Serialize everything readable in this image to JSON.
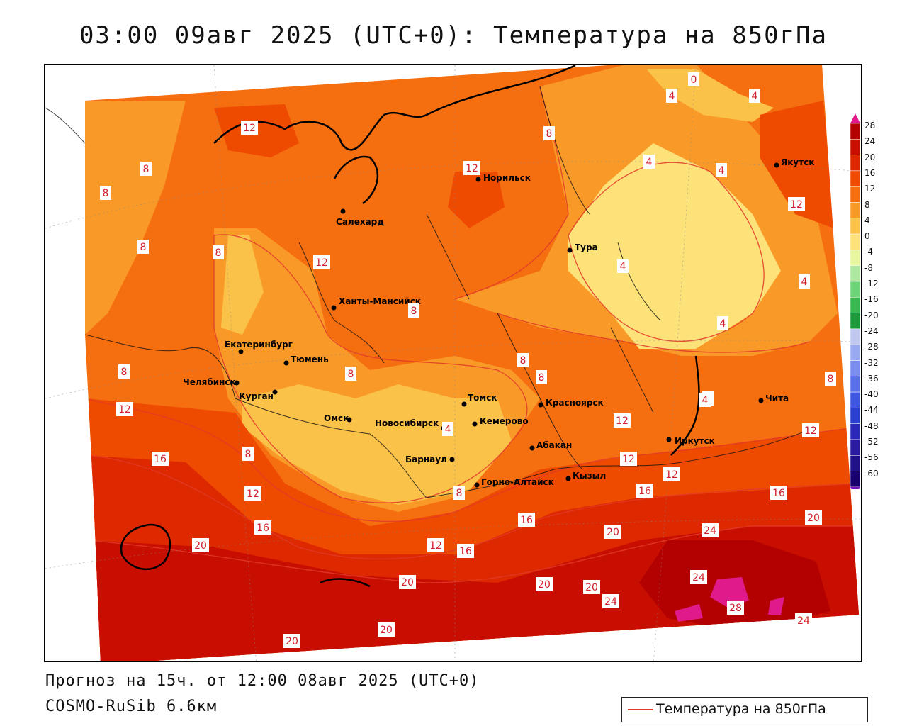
{
  "title": "03:00 09авг 2025 (UTC+0): Температура на 850гПа",
  "footer": {
    "forecast": "Прогноз на 15ч. от 12:00 08авг 2025 (UTC+0)",
    "model": "COSMO-RuSib 6.6км"
  },
  "legend": {
    "label": "Температура на 850гПа",
    "line_color": "#e23a2a"
  },
  "colorbar": {
    "ticks": [
      "28",
      "24",
      "20",
      "16",
      "12",
      "8",
      "4",
      "0",
      "-4",
      "-8",
      "-12",
      "-16",
      "-20",
      "-24",
      "-28",
      "-32",
      "-36",
      "-40",
      "-44",
      "-48",
      "-52",
      "-56",
      "-60"
    ],
    "colors": [
      "#b30000",
      "#c80e00",
      "#dd2800",
      "#ee4a00",
      "#f56e10",
      "#f99a28",
      "#fbc24a",
      "#fde27a",
      "#e8f6a0",
      "#aee8a0",
      "#6ed47a",
      "#38b850",
      "#1a9a3a",
      "#c0c8f0",
      "#9aaaf0",
      "#7a8cf0",
      "#5a70ea",
      "#3e56e0",
      "#2a3ed0",
      "#2a28b8",
      "#2a1aa0",
      "#20108a",
      "#180070"
    ]
  },
  "cities": [
    {
      "name": "Салехард"
    },
    {
      "name": "Норильск"
    },
    {
      "name": "Тура"
    },
    {
      "name": "Якутск"
    },
    {
      "name": "Ханты-Мансийск"
    },
    {
      "name": "Екатеринбург"
    },
    {
      "name": "Тюмень"
    },
    {
      "name": "Челябинск"
    },
    {
      "name": "Курган"
    },
    {
      "name": "Омск"
    },
    {
      "name": "Новосибирск"
    },
    {
      "name": "Томск"
    },
    {
      "name": "Кемерово"
    },
    {
      "name": "Барнаул"
    },
    {
      "name": "Горно-Алтайск"
    },
    {
      "name": "Абакан"
    },
    {
      "name": "Красноярск"
    },
    {
      "name": "Кызыл"
    },
    {
      "name": "Иркутск"
    },
    {
      "name": "Чита"
    }
  ],
  "contour_labels": [
    "12",
    "8",
    "8",
    "8",
    "8",
    "12",
    "8",
    "8",
    "8",
    "8",
    "8",
    "8",
    "8",
    "4",
    "8",
    "12",
    "16",
    "8",
    "12",
    "16",
    "20",
    "12",
    "16",
    "20",
    "20",
    "20",
    "20",
    "24",
    "20",
    "20",
    "24",
    "28",
    "24",
    "24",
    "16",
    "20",
    "16",
    "12",
    "16",
    "12",
    "12",
    "12",
    "4",
    "8",
    "4",
    "4",
    "4",
    "0",
    "4",
    "4",
    "4",
    "12",
    "4",
    "4",
    "8",
    "12"
  ]
}
